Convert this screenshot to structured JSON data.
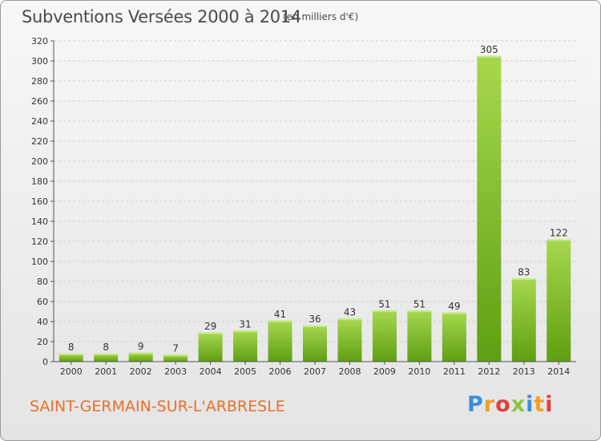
{
  "header": {
    "title": "Subventions Versées 2000 à 2014",
    "subtitle": "(en milliers d'€)"
  },
  "footer": {
    "commune": "SAINT-GERMAIN-SUR-L'ARBRESLE",
    "logo_letters": [
      "P",
      "r",
      "o",
      "x",
      "i",
      "t",
      "i"
    ],
    "logo_colors": [
      "#3a8fd9",
      "#f0a020",
      "#e04040",
      "#8cc63f",
      "#3a8fd9",
      "#f0a020",
      "#e04040"
    ]
  },
  "colors": {
    "bar_light": "#a6d84e",
    "bar_dark": "#5f9e12",
    "grid": "#cfcfcf",
    "axis": "#555555"
  },
  "chart_data": {
    "type": "bar",
    "title": "Subventions Versées 2000 à 2014",
    "subtitle": "(en milliers d'€)",
    "categories": [
      "2000",
      "2001",
      "2002",
      "2003",
      "2004",
      "2005",
      "2006",
      "2007",
      "2008",
      "2009",
      "2010",
      "2011",
      "2012",
      "2013",
      "2014"
    ],
    "values": [
      8,
      8,
      9,
      7,
      29,
      31,
      41,
      36,
      43,
      51,
      51,
      49,
      305,
      83,
      122
    ],
    "ylim": [
      0,
      320
    ],
    "yticks": [
      0,
      20,
      40,
      60,
      80,
      100,
      120,
      140,
      160,
      180,
      200,
      220,
      240,
      260,
      280,
      300,
      320
    ],
    "grid": true,
    "data_labels": true
  }
}
